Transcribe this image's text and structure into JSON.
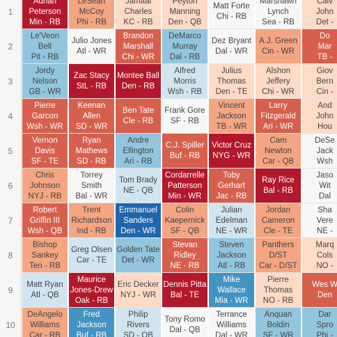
{
  "palette": {
    "dark_red": "#b2182b",
    "red": "#d6604d",
    "salmon": "#f4a582",
    "pale_peach": "#fddbc7",
    "white": "#f7f7f7",
    "pale_blue": "#d1e5f0",
    "light_blue": "#92c5de",
    "blue": "#4393c3",
    "dark_blue": "#2166ac"
  },
  "rows": [
    {
      "num": "1",
      "cells": [
        {
          "text": "Adrian\nPeterson\nMin - RB",
          "c": "dark_red"
        },
        {
          "text": "LeSean\nMcCoy\nPhi - RB",
          "c": "salmon"
        },
        {
          "text": "Jamaal\nCharles\nKC - RB",
          "c": "pale_peach"
        },
        {
          "text": "Peyton\nManning\nDen - QB",
          "c": "pale_peach"
        },
        {
          "text": "Matt Forte\nChi - RB",
          "c": "white"
        },
        {
          "text": "Marshawn\nLynch\nSea - RB",
          "c": "white"
        },
        {
          "text": "Calv\nJohn\nDet -",
          "c": "pale_peach"
        }
      ]
    },
    {
      "num": "2",
      "cells": [
        {
          "text": "Le'Veon Bell\nPit - RB",
          "c": "light_blue"
        },
        {
          "text": "Julio Jones\nAtl - WR",
          "c": "white"
        },
        {
          "text": "Brandon\nMarshall\nChi - WR",
          "c": "red"
        },
        {
          "text": "DeMarco\nMurray\nDal - RB",
          "c": "light_blue"
        },
        {
          "text": "Dez Bryant\nDal - WR",
          "c": "white"
        },
        {
          "text": "A.J. Green\nCin - WR",
          "c": "salmon"
        },
        {
          "text": "Do\nMar\nTB -",
          "c": "red"
        }
      ]
    },
    {
      "num": "3",
      "cells": [
        {
          "text": "Jordy\nNelson\nGB - WR",
          "c": "light_blue"
        },
        {
          "text": "Zac Stacy\nStL - RB",
          "c": "dark_red"
        },
        {
          "text": "Montee Ball\nDen - RB",
          "c": "dark_red"
        },
        {
          "text": "Alfred\nMorris\nWsh - RB",
          "c": "pale_blue"
        },
        {
          "text": "Julius\nThomas\nDen - TE",
          "c": "pale_peach"
        },
        {
          "text": "Alshon Jeffery\nChi - WR",
          "c": "pale_peach"
        },
        {
          "text": "Giov\nBern\nCin -",
          "c": "pale_peach"
        }
      ]
    },
    {
      "num": "4",
      "cells": [
        {
          "text": "Pierre\nGarcon\nWsh - WR",
          "c": "red"
        },
        {
          "text": "Keenan\nAllen\nSD - WR",
          "c": "red"
        },
        {
          "text": "Ben Tate\nCle - RB",
          "c": "red"
        },
        {
          "text": "Frank Gore\nSF - RB",
          "c": "white"
        },
        {
          "text": "Vincent\nJackson\nTB - WR",
          "c": "salmon"
        },
        {
          "text": "Larry\nFitzgerald\nAri - WR",
          "c": "red"
        },
        {
          "text": "And\nJohn\nHou",
          "c": "pale_peach"
        }
      ]
    },
    {
      "num": "5",
      "cells": [
        {
          "text": "Vernon\nDavis\nSF - TE",
          "c": "red"
        },
        {
          "text": "Ryan\nMathews\nSD - RB",
          "c": "red"
        },
        {
          "text": "Andre\nEllington\nAri - RB",
          "c": "light_blue"
        },
        {
          "text": "C.J. Spiller\nBuf - RB",
          "c": "red"
        },
        {
          "text": "Victor Cruz\nNYG - WR",
          "c": "dark_red"
        },
        {
          "text": "Cam Newton\nCar - QB",
          "c": "salmon"
        },
        {
          "text": "DeSe\nJack\nWsh",
          "c": "white"
        }
      ]
    },
    {
      "num": "6",
      "cells": [
        {
          "text": "Chris\nJohnson\nNYJ - RB",
          "c": "salmon"
        },
        {
          "text": "Torrey\nSmith\nBal - WR",
          "c": "white"
        },
        {
          "text": "Tom Brady\nNE - QB",
          "c": "pale_blue"
        },
        {
          "text": "Cordarrelle\nPatterson\nMin - WR",
          "c": "dark_red"
        },
        {
          "text": "Toby\nGerhart\nJac - RB",
          "c": "red"
        },
        {
          "text": "Ray Rice\nBal - RB",
          "c": "dark_red"
        },
        {
          "text": "Jaso\nWit\nDal",
          "c": "white"
        }
      ]
    },
    {
      "num": "7",
      "cells": [
        {
          "text": "Robert\nGriffin III\nWsh - QB",
          "c": "red"
        },
        {
          "text": "Trent\nRichardson\nInd - RB",
          "c": "salmon"
        },
        {
          "text": "Emmanuel\nSanders\nDen - WR",
          "c": "dark_blue"
        },
        {
          "text": "Colin\nKaepernick\nSF - QB",
          "c": "salmon"
        },
        {
          "text": "Julian\nEdelman\nNE - WR",
          "c": "pale_blue"
        },
        {
          "text": "Jordan\nCameron\nCle - TE",
          "c": "salmon"
        },
        {
          "text": "Sha\nVere\nNE -",
          "c": "white"
        }
      ]
    },
    {
      "num": "8",
      "cells": [
        {
          "text": "Bishop\nSankey\nTen - RB",
          "c": "salmon"
        },
        {
          "text": "Greg Olsen\nCar - TE",
          "c": "pale_blue"
        },
        {
          "text": "Golden Tate\nDet - WR",
          "c": "light_blue"
        },
        {
          "text": "Stevan\nRidley\nNE - RB",
          "c": "red"
        },
        {
          "text": "Steven\nJackson\nAtl - RB",
          "c": "light_blue"
        },
        {
          "text": "Panthers D/ST\nCar - D/ST",
          "c": "salmon"
        },
        {
          "text": "Marq\nCols\nNO -",
          "c": "pale_peach"
        }
      ]
    },
    {
      "num": "9",
      "cells": [
        {
          "text": "Matt Ryan\nAtl - QB",
          "c": "pale_blue"
        },
        {
          "text": "Maurice\nJones-Drew\nOak - RB",
          "c": "dark_red"
        },
        {
          "text": "Eric Decker\nNYJ - WR",
          "c": "pale_peach"
        },
        {
          "text": "Dennis Pitta\nBal - TE",
          "c": "dark_red"
        },
        {
          "text": "Mike\nWallace\nMia - WR",
          "c": "blue"
        },
        {
          "text": "Pierre Thomas\nNO - RB",
          "c": "pale_peach"
        },
        {
          "text": "Wes W\nDen",
          "c": "red"
        }
      ]
    },
    {
      "num": "10",
      "cells": [
        {
          "text": "DeAngelo\nWilliams\nCar - RB",
          "c": "salmon"
        },
        {
          "text": "Fred\nJackson\nBuf - RB",
          "c": "blue"
        },
        {
          "text": "Philip Rivers\nSD - QB",
          "c": "pale_blue"
        },
        {
          "text": "Tony Romo\nDal - QB",
          "c": "white"
        },
        {
          "text": "Terrance\nWilliams\nDal - WR",
          "c": "white"
        },
        {
          "text": "Anquan Boldin\nSF - WR",
          "c": "light_blue"
        },
        {
          "text": "Dar\nSpro\nPhi -",
          "c": "light_blue"
        }
      ]
    }
  ]
}
